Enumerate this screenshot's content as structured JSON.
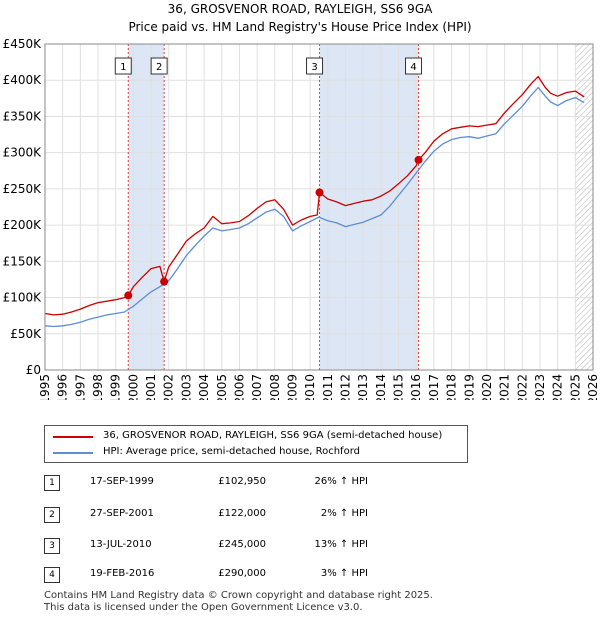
{
  "title_line1": "36, GROSVENOR ROAD, RAYLEIGH, SS6 9GA",
  "title_line2": "Price paid vs. HM Land Registry's House Price Index (HPI)",
  "colors": {
    "property": "#cc0000",
    "hpi": "#5b8ed6",
    "shade": "#dce6f5",
    "grid": "#e0e0e0"
  },
  "chart_data": {
    "type": "line",
    "title": "36, GROSVENOR ROAD, RAYLEIGH, SS6 9GA",
    "subtitle": "Price paid vs. HM Land Registry's House Price Index (HPI)",
    "xlabel": "",
    "ylabel": "",
    "xlim": [
      1995,
      2026
    ],
    "ylim": [
      0,
      450000
    ],
    "yticks": [
      0,
      50000,
      100000,
      150000,
      200000,
      250000,
      300000,
      350000,
      400000,
      450000
    ],
    "ytick_labels": [
      "£0",
      "£50K",
      "£100K",
      "£150K",
      "£200K",
      "£250K",
      "£300K",
      "£350K",
      "£400K",
      "£450K"
    ],
    "xticks": [
      1995,
      1996,
      1997,
      1998,
      1999,
      2000,
      2001,
      2002,
      2003,
      2004,
      2005,
      2006,
      2007,
      2008,
      2009,
      2010,
      2011,
      2012,
      2013,
      2014,
      2015,
      2016,
      2017,
      2018,
      2019,
      2020,
      2021,
      2022,
      2023,
      2024,
      2025,
      2026
    ],
    "grid": true,
    "shaded_ranges": [
      [
        1999.71,
        2001.74
      ],
      [
        2010.53,
        2016.13
      ]
    ],
    "hatched_from": 2025.0,
    "series": [
      {
        "name": "36, GROSVENOR ROAD, RAYLEIGH, SS6 9GA (semi-detached house)",
        "x": [
          1995.0,
          1995.5,
          1996.0,
          1996.5,
          1997.0,
          1997.5,
          1998.0,
          1998.5,
          1999.0,
          1999.5,
          1999.71,
          2000.0,
          2000.5,
          2001.0,
          2001.5,
          2001.74,
          2002.0,
          2002.5,
          2003.0,
          2003.5,
          2004.0,
          2004.5,
          2005.0,
          2005.5,
          2006.0,
          2006.5,
          2007.0,
          2007.5,
          2008.0,
          2008.5,
          2009.0,
          2009.5,
          2010.0,
          2010.4,
          2010.53,
          2011.0,
          2011.5,
          2012.0,
          2012.5,
          2013.0,
          2013.5,
          2014.0,
          2014.5,
          2015.0,
          2015.5,
          2016.0,
          2016.13,
          2016.5,
          2017.0,
          2017.5,
          2018.0,
          2018.5,
          2019.0,
          2019.5,
          2020.0,
          2020.5,
          2021.0,
          2021.5,
          2022.0,
          2022.5,
          2022.9,
          2023.3,
          2023.6,
          2024.0,
          2024.5,
          2025.0,
          2025.5
        ],
        "y": [
          78000,
          76000,
          77000,
          80000,
          84000,
          89000,
          93000,
          95000,
          97000,
          100000,
          102950,
          115000,
          128000,
          140000,
          143000,
          122000,
          142000,
          160000,
          178000,
          188000,
          196000,
          212000,
          202000,
          203000,
          205000,
          213000,
          223000,
          232000,
          235000,
          222000,
          200000,
          207000,
          212000,
          214000,
          245000,
          236000,
          232000,
          227000,
          230000,
          233000,
          235000,
          240000,
          247000,
          257000,
          268000,
          282000,
          290000,
          300000,
          316000,
          326000,
          333000,
          335000,
          337000,
          336000,
          338000,
          340000,
          355000,
          368000,
          380000,
          395000,
          405000,
          390000,
          382000,
          378000,
          383000,
          385000,
          377000
        ]
      },
      {
        "name": "HPI: Average price, semi-detached house, Rochford",
        "x": [
          1995.0,
          1995.5,
          1996.0,
          1996.5,
          1997.0,
          1997.5,
          1998.0,
          1998.5,
          1999.0,
          1999.5,
          2000.0,
          2000.5,
          2001.0,
          2001.5,
          2002.0,
          2002.5,
          2003.0,
          2003.5,
          2004.0,
          2004.5,
          2005.0,
          2005.5,
          2006.0,
          2006.5,
          2007.0,
          2007.5,
          2008.0,
          2008.5,
          2009.0,
          2009.5,
          2010.0,
          2010.5,
          2011.0,
          2011.5,
          2012.0,
          2012.5,
          2013.0,
          2013.5,
          2014.0,
          2014.5,
          2015.0,
          2015.5,
          2016.0,
          2016.5,
          2017.0,
          2017.5,
          2018.0,
          2018.5,
          2019.0,
          2019.5,
          2020.0,
          2020.5,
          2021.0,
          2021.5,
          2022.0,
          2022.5,
          2022.9,
          2023.3,
          2023.6,
          2024.0,
          2024.5,
          2025.0,
          2025.5
        ],
        "y": [
          61000,
          60000,
          61000,
          63000,
          66000,
          70000,
          73000,
          76000,
          78000,
          80000,
          88000,
          98000,
          108000,
          115000,
          123000,
          140000,
          158000,
          172000,
          185000,
          196000,
          192000,
          194000,
          196000,
          202000,
          210000,
          218000,
          222000,
          212000,
          192000,
          199000,
          205000,
          211000,
          206000,
          203000,
          198000,
          201000,
          204000,
          209000,
          214000,
          226000,
          241000,
          256000,
          272000,
          288000,
          302000,
          312000,
          318000,
          321000,
          322000,
          320000,
          323000,
          326000,
          340000,
          352000,
          364000,
          379000,
          390000,
          378000,
          370000,
          365000,
          372000,
          376000,
          369000
        ]
      }
    ],
    "sales": [
      {
        "label": "1",
        "x": 1999.71,
        "y": 102950
      },
      {
        "label": "2",
        "x": 2001.74,
        "y": 122000
      },
      {
        "label": "3",
        "x": 2010.53,
        "y": 245000
      },
      {
        "label": "4",
        "x": 2016.13,
        "y": 290000
      }
    ]
  },
  "legend": {
    "property_label": "36, GROSVENOR ROAD, RAYLEIGH, SS6 9GA (semi-detached house)",
    "hpi_label": "HPI: Average price, semi-detached house, Rochford"
  },
  "transactions": [
    {
      "num": "1",
      "date": "17-SEP-1999",
      "price": "£102,950",
      "hpi": "26% ↑ HPI"
    },
    {
      "num": "2",
      "date": "27-SEP-2001",
      "price": "£122,000",
      "hpi": "2% ↑ HPI"
    },
    {
      "num": "3",
      "date": "13-JUL-2010",
      "price": "£245,000",
      "hpi": "13% ↑ HPI"
    },
    {
      "num": "4",
      "date": "19-FEB-2016",
      "price": "£290,000",
      "hpi": "3% ↑ HPI"
    }
  ],
  "footer": {
    "line1": "Contains HM Land Registry data © Crown copyright and database right 2025.",
    "line2": "This data is licensed under the Open Government Licence v3.0."
  }
}
